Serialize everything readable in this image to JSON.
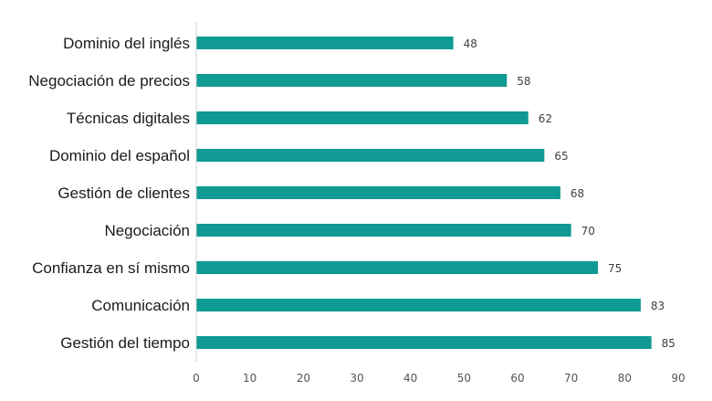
{
  "chart_data": {
    "type": "bar",
    "orientation": "horizontal",
    "categories": [
      "Dominio del inglés",
      "Negociación de precios",
      "Técnicas digitales",
      "Dominio del español",
      "Gestión de clientes",
      "Negociación",
      "Confianza en sí mismo",
      "Comunicación",
      "Gestión del tiempo"
    ],
    "values": [
      48,
      58,
      62,
      65,
      68,
      70,
      75,
      83,
      85
    ],
    "data_labels": [
      "48",
      "58",
      "62",
      "65",
      "68",
      "70",
      "75",
      "83",
      "85"
    ],
    "xlim": [
      0,
      90
    ],
    "xticks": [
      0,
      10,
      20,
      30,
      40,
      50,
      60,
      70,
      80,
      90
    ],
    "xtick_labels": [
      "0",
      "10",
      "20",
      "30",
      "40",
      "50",
      "60",
      "70",
      "80",
      "90"
    ],
    "bar_color": "#0f9a93",
    "axis_color": "#d0d0d0",
    "grid": false,
    "legend": "none",
    "title": "",
    "xlabel": "",
    "ylabel": ""
  }
}
